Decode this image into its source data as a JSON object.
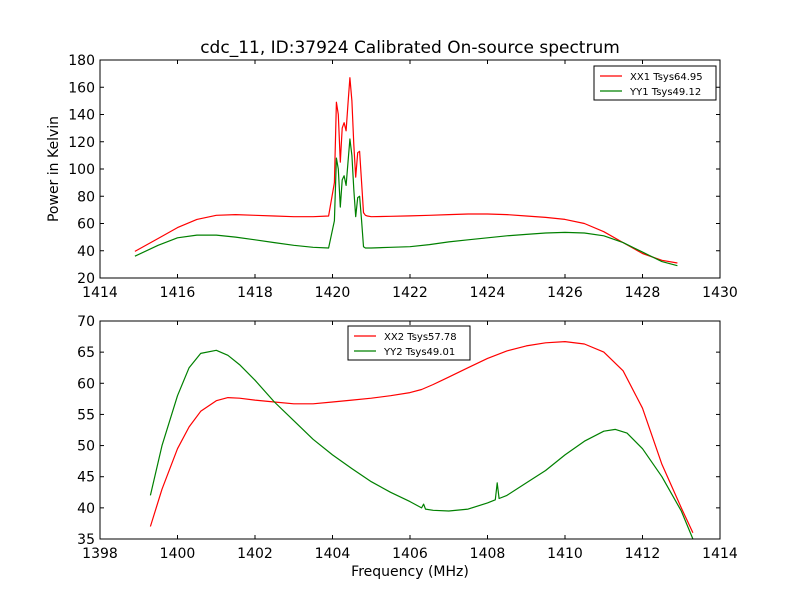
{
  "title": "cdc_11, ID:37924 Calibrated On-source spectrum",
  "chart_data": [
    {
      "type": "line",
      "xlabel": "",
      "ylabel": "Power in Kelvin",
      "xlim": [
        1414,
        1430
      ],
      "ylim": [
        20,
        180
      ],
      "xticks": [
        "1414",
        "1416",
        "1418",
        "1420",
        "1422",
        "1424",
        "1426",
        "1428",
        "1430"
      ],
      "yticks": [
        "20",
        "40",
        "60",
        "80",
        "100",
        "120",
        "140",
        "160",
        "180"
      ],
      "legend_position": "upper right",
      "grid": false,
      "series": [
        {
          "name": "XX1 Tsys64.95",
          "color": "#ff0000",
          "x": [
            1414.9,
            1415.5,
            1416.0,
            1416.5,
            1417.0,
            1417.5,
            1418.0,
            1418.5,
            1419.0,
            1419.5,
            1419.9,
            1420.05,
            1420.1,
            1420.15,
            1420.2,
            1420.25,
            1420.3,
            1420.35,
            1420.4,
            1420.45,
            1420.5,
            1420.55,
            1420.6,
            1420.65,
            1420.7,
            1420.75,
            1420.8,
            1420.85,
            1420.9,
            1421.0,
            1421.5,
            1422.0,
            1422.5,
            1423.0,
            1423.5,
            1424.0,
            1424.5,
            1425.0,
            1425.5,
            1426.0,
            1426.5,
            1427.0,
            1427.5,
            1428.0,
            1428.5,
            1428.9
          ],
          "values": [
            39.5,
            49,
            57,
            63,
            66,
            66.5,
            66,
            65.5,
            65,
            65,
            65.5,
            90,
            149,
            140,
            105,
            130,
            134,
            128,
            148,
            167,
            150,
            118,
            94,
            112,
            113,
            90,
            68,
            66,
            65.5,
            65,
            65.3,
            65.6,
            66,
            66.5,
            67,
            67,
            66.5,
            65.5,
            64.5,
            63,
            60,
            54,
            46,
            38,
            33,
            31
          ]
        },
        {
          "name": "YY1 Tsys49.12",
          "color": "#008000",
          "x": [
            1414.9,
            1415.5,
            1416.0,
            1416.5,
            1417.0,
            1417.5,
            1418.0,
            1418.5,
            1419.0,
            1419.5,
            1419.9,
            1420.05,
            1420.1,
            1420.15,
            1420.2,
            1420.25,
            1420.3,
            1420.35,
            1420.4,
            1420.45,
            1420.5,
            1420.55,
            1420.6,
            1420.65,
            1420.7,
            1420.75,
            1420.8,
            1420.85,
            1420.9,
            1421.0,
            1421.5,
            1422.0,
            1422.5,
            1423.0,
            1423.5,
            1424.0,
            1424.5,
            1425.0,
            1425.5,
            1426.0,
            1426.5,
            1427.0,
            1427.5,
            1428.0,
            1428.5,
            1428.9
          ],
          "values": [
            36,
            44,
            49.5,
            51.5,
            51.5,
            50,
            48,
            46,
            44,
            42.5,
            42,
            62,
            108,
            100,
            72,
            92,
            95,
            88,
            105,
            122,
            110,
            85,
            65,
            79,
            80,
            62,
            43,
            42,
            42,
            42,
            42.5,
            43,
            44.5,
            46.5,
            48,
            49.5,
            51,
            52,
            53,
            53.5,
            53,
            51,
            46,
            39,
            32,
            29
          ]
        }
      ]
    },
    {
      "type": "line",
      "xlabel": "Frequency (MHz)",
      "ylabel": "",
      "xlim": [
        1398,
        1414
      ],
      "ylim": [
        35,
        70
      ],
      "xticks": [
        "1398",
        "1400",
        "1402",
        "1404",
        "1406",
        "1408",
        "1410",
        "1412",
        "1414"
      ],
      "yticks": [
        "35",
        "40",
        "45",
        "50",
        "55",
        "60",
        "65",
        "70"
      ],
      "legend_position": "upper center",
      "grid": false,
      "series": [
        {
          "name": "XX2 Tsys57.78",
          "color": "#ff0000",
          "x": [
            1399.3,
            1399.6,
            1400.0,
            1400.3,
            1400.6,
            1401.0,
            1401.3,
            1401.6,
            1402.0,
            1402.5,
            1403.0,
            1403.5,
            1404.0,
            1404.5,
            1405.0,
            1405.5,
            1406.0,
            1406.3,
            1406.6,
            1407.0,
            1407.5,
            1408.0,
            1408.5,
            1409.0,
            1409.5,
            1410.0,
            1410.5,
            1411.0,
            1411.5,
            1412.0,
            1412.5,
            1413.0,
            1413.3
          ],
          "values": [
            37,
            43,
            49.5,
            53,
            55.5,
            57.2,
            57.7,
            57.6,
            57.3,
            57.0,
            56.7,
            56.7,
            57.0,
            57.3,
            57.6,
            58.0,
            58.5,
            59.0,
            59.8,
            61.0,
            62.5,
            64.0,
            65.2,
            66.0,
            66.5,
            66.7,
            66.3,
            65.0,
            62.0,
            56.0,
            47.0,
            40.0,
            36.0
          ]
        },
        {
          "name": "YY2 Tsys49.01",
          "color": "#008000",
          "x": [
            1399.3,
            1399.6,
            1400.0,
            1400.3,
            1400.6,
            1401.0,
            1401.3,
            1401.6,
            1402.0,
            1402.5,
            1403.0,
            1403.5,
            1404.0,
            1404.5,
            1405.0,
            1405.5,
            1406.0,
            1406.3,
            1406.35,
            1406.4,
            1406.6,
            1407.0,
            1407.5,
            1408.0,
            1408.2,
            1408.25,
            1408.3,
            1408.5,
            1409.0,
            1409.5,
            1410.0,
            1410.5,
            1411.0,
            1411.3,
            1411.6,
            1412.0,
            1412.5,
            1413.0,
            1413.3
          ],
          "values": [
            42,
            50,
            58,
            62.5,
            64.8,
            65.3,
            64.5,
            63,
            60.5,
            57,
            54,
            51,
            48.5,
            46.3,
            44.2,
            42.5,
            41,
            40,
            40.6,
            39.8,
            39.6,
            39.5,
            39.8,
            40.8,
            41.3,
            44.0,
            41.5,
            42.0,
            44.0,
            46.0,
            48.5,
            50.7,
            52.3,
            52.6,
            52.0,
            49.5,
            45.0,
            39.5,
            35.0
          ]
        }
      ]
    }
  ]
}
